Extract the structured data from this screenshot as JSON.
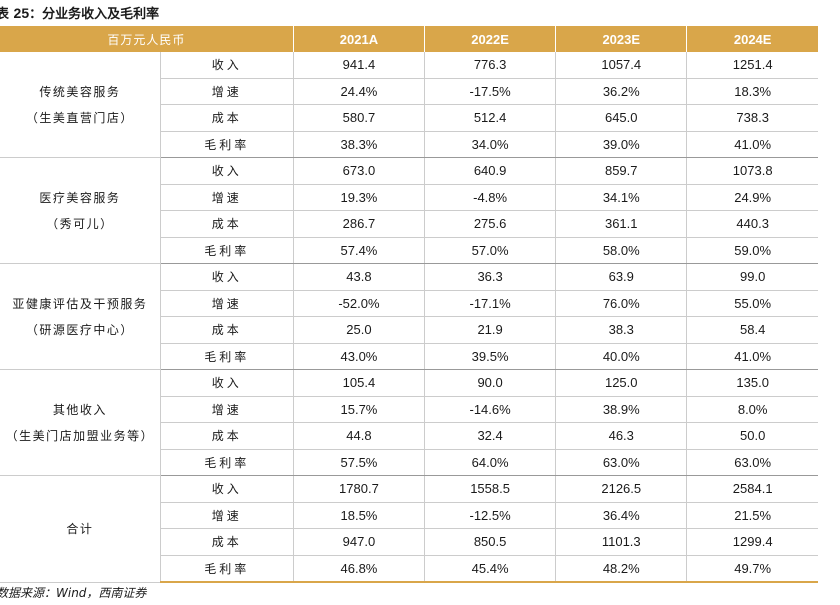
{
  "title": {
    "prefix": "表",
    "number": "25",
    "text": "：分业务收入及毛利率"
  },
  "header": {
    "unit": "百万元人民币",
    "years": [
      "2021A",
      "2022E",
      "2023E",
      "2024E"
    ]
  },
  "segments": [
    {
      "name": "传统美容服务",
      "sub": "（生美直营门店）",
      "rows": [
        {
          "metric": "收入",
          "values": [
            "941.4",
            "776.3",
            "1057.4",
            "1251.4"
          ]
        },
        {
          "metric": "增速",
          "values": [
            "24.4%",
            "-17.5%",
            "36.2%",
            "18.3%"
          ]
        },
        {
          "metric": "成本",
          "values": [
            "580.7",
            "512.4",
            "645.0",
            "738.3"
          ]
        },
        {
          "metric": "毛利率",
          "values": [
            "38.3%",
            "34.0%",
            "39.0%",
            "41.0%"
          ]
        }
      ]
    },
    {
      "name": "医疗美容服务",
      "sub": "（秀可儿）",
      "rows": [
        {
          "metric": "收入",
          "values": [
            "673.0",
            "640.9",
            "859.7",
            "1073.8"
          ]
        },
        {
          "metric": "增速",
          "values": [
            "19.3%",
            "-4.8%",
            "34.1%",
            "24.9%"
          ]
        },
        {
          "metric": "成本",
          "values": [
            "286.7",
            "275.6",
            "361.1",
            "440.3"
          ]
        },
        {
          "metric": "毛利率",
          "values": [
            "57.4%",
            "57.0%",
            "58.0%",
            "59.0%"
          ]
        }
      ]
    },
    {
      "name": "亚健康评估及干预服务",
      "sub": "（研源医疗中心）",
      "rows": [
        {
          "metric": "收入",
          "values": [
            "43.8",
            "36.3",
            "63.9",
            "99.0"
          ]
        },
        {
          "metric": "增速",
          "values": [
            "-52.0%",
            "-17.1%",
            "76.0%",
            "55.0%"
          ]
        },
        {
          "metric": "成本",
          "values": [
            "25.0",
            "21.9",
            "38.3",
            "58.4"
          ]
        },
        {
          "metric": "毛利率",
          "values": [
            "43.0%",
            "39.5%",
            "40.0%",
            "41.0%"
          ]
        }
      ]
    },
    {
      "name": "其他收入",
      "sub": "（生美门店加盟业务等）",
      "rows": [
        {
          "metric": "收入",
          "values": [
            "105.4",
            "90.0",
            "125.0",
            "135.0"
          ]
        },
        {
          "metric": "增速",
          "values": [
            "15.7%",
            "-14.6%",
            "38.9%",
            "8.0%"
          ]
        },
        {
          "metric": "成本",
          "values": [
            "44.8",
            "32.4",
            "46.3",
            "50.0"
          ]
        },
        {
          "metric": "毛利率",
          "values": [
            "57.5%",
            "64.0%",
            "63.0%",
            "63.0%"
          ]
        }
      ]
    },
    {
      "name": "合计",
      "sub": "",
      "rows": [
        {
          "metric": "收入",
          "values": [
            "1780.7",
            "1558.5",
            "2126.5",
            "2584.1"
          ]
        },
        {
          "metric": "增速",
          "values": [
            "18.5%",
            "-12.5%",
            "36.4%",
            "21.5%"
          ]
        },
        {
          "metric": "成本",
          "values": [
            "947.0",
            "850.5",
            "1101.3",
            "1299.4"
          ]
        },
        {
          "metric": "毛利率",
          "values": [
            "46.8%",
            "45.4%",
            "48.2%",
            "49.7%"
          ]
        }
      ]
    }
  ],
  "source": "数据来源：Wind，西南证券"
}
